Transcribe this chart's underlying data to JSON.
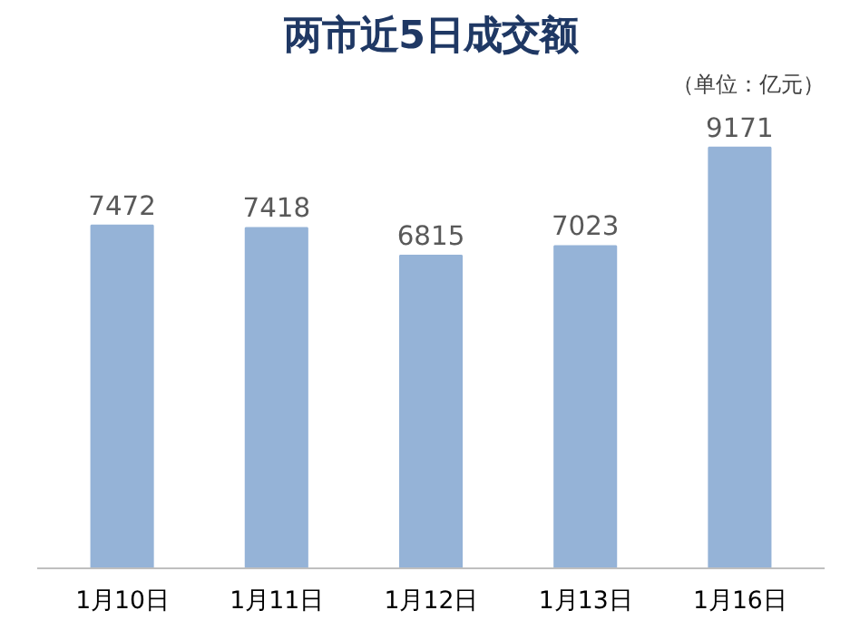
{
  "chart_data": {
    "type": "bar",
    "title": "两市近5日成交额",
    "annotations": [
      "（单位：亿元）"
    ],
    "categories": [
      "1月10日",
      "1月11日",
      "1月12日",
      "1月13日",
      "1月16日"
    ],
    "values": [
      7472,
      7418,
      6815,
      7023,
      9171
    ],
    "color": "#95b3d7",
    "data_labels": true,
    "grid": false
  }
}
